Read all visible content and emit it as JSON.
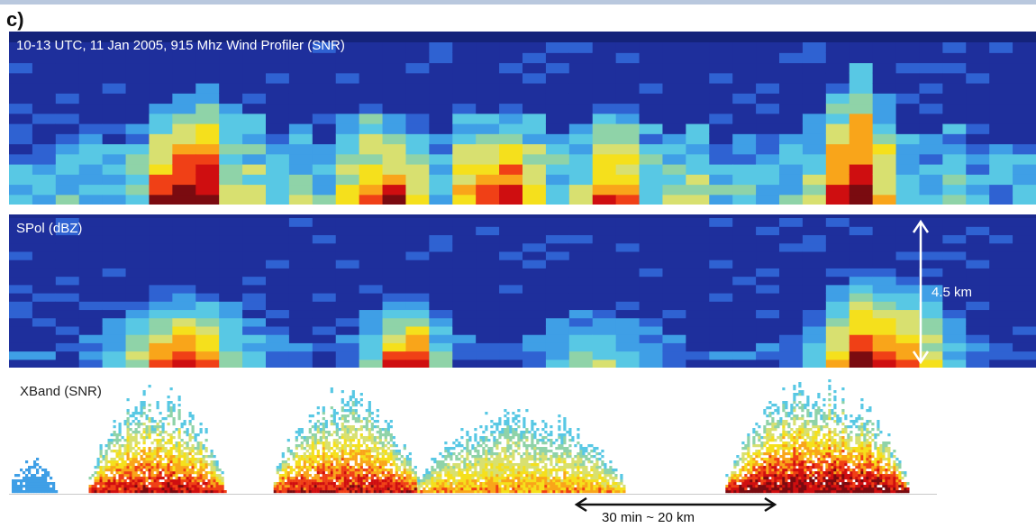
{
  "figure": {
    "panel_letter": "c)",
    "height_scale_label": "4.5 km",
    "time_scale_label": "30 min ~ 20 km"
  },
  "colors": {
    "background_dark": "#14237a",
    "colormap": [
      "#1e2f9c",
      "#2f62d2",
      "#3f9fe6",
      "#58c8e4",
      "#8fd3a8",
      "#d8e070",
      "#f5e01c",
      "#f9a51a",
      "#f04016",
      "#cf0e10",
      "#7a0b10"
    ]
  },
  "chart_data": [
    {
      "type": "heatmap",
      "title": "10-13 UTC, 11 Jan 2005, 915 Mhz Wind Profiler (SNR)",
      "columns": 44,
      "rows": 16,
      "column_peaks": [
        2,
        3,
        3,
        2,
        3,
        4,
        9,
        10,
        11,
        6,
        5,
        3,
        4,
        3,
        6,
        8,
        9,
        5,
        3,
        7,
        9,
        9,
        6,
        4,
        4,
        8,
        8,
        4,
        5,
        5,
        3,
        3,
        2,
        3,
        4,
        10,
        11,
        7,
        3,
        3,
        4,
        3,
        2,
        3
      ],
      "column_tops": [
        4,
        4,
        6,
        6,
        5,
        7,
        9,
        10,
        11,
        9,
        8,
        5,
        7,
        5,
        8,
        9,
        8,
        8,
        6,
        9,
        8,
        9,
        8,
        6,
        7,
        9,
        9,
        7,
        6,
        7,
        5,
        6,
        6,
        6,
        8,
        11,
        13,
        10,
        6,
        6,
        7,
        5,
        5,
        5
      ]
    },
    {
      "type": "heatmap",
      "title": "SPol (dBZ)",
      "columns": 44,
      "rows": 18,
      "column_peaks": [
        0,
        0,
        0,
        1,
        3,
        5,
        8,
        9,
        8,
        5,
        3,
        1,
        0,
        0,
        1,
        4,
        8,
        9,
        4,
        1,
        0,
        0,
        1,
        3,
        4,
        4,
        3,
        2,
        1,
        0,
        0,
        0,
        0,
        1,
        3,
        7,
        10,
        9,
        8,
        6,
        3,
        1,
        0,
        0
      ],
      "column_tops": [
        1,
        1,
        2,
        3,
        5,
        7,
        8,
        8,
        8,
        7,
        5,
        3,
        2,
        2,
        3,
        6,
        8,
        8,
        6,
        3,
        2,
        2,
        3,
        5,
        6,
        6,
        5,
        4,
        3,
        1,
        1,
        1,
        2,
        3,
        6,
        9,
        11,
        11,
        10,
        9,
        6,
        3,
        1,
        1
      ]
    },
    {
      "type": "area",
      "title": "XBand (SNR)",
      "segments": [
        {
          "x_start": 0.0,
          "x_end": 0.045,
          "peak": 2
        },
        {
          "x_start": 0.075,
          "x_end": 0.21,
          "peak": 9
        },
        {
          "x_start": 0.255,
          "x_end": 0.4,
          "peak": 9
        },
        {
          "x_start": 0.395,
          "x_end": 0.6,
          "peak": 7
        },
        {
          "x_start": 0.695,
          "x_end": 0.875,
          "peak": 10
        }
      ]
    }
  ]
}
